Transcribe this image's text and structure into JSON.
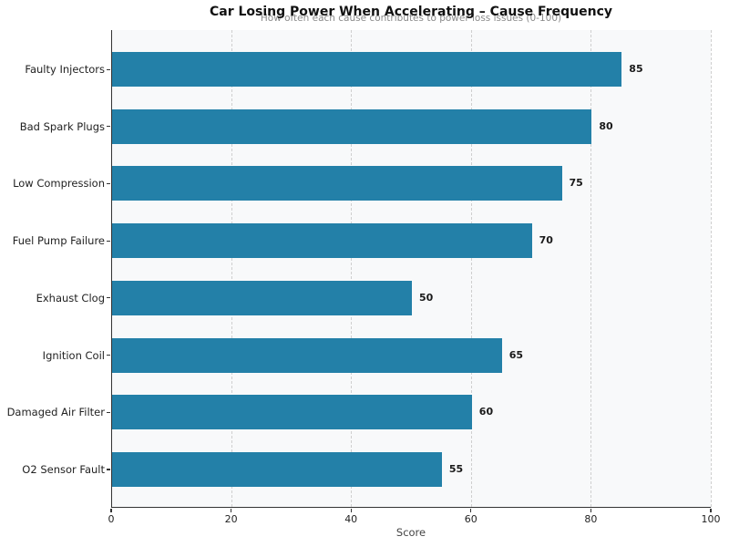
{
  "title": "Car Losing Power When Accelerating – Cause Frequency",
  "subtitle": "How often each cause contributes to power loss issues (0-100)",
  "chart_data": {
    "type": "bar",
    "orientation": "horizontal",
    "title": "Car Losing Power When Accelerating – Cause Frequency",
    "subtitle": "How often each cause contributes to power loss issues (0-100)",
    "categories": [
      "Faulty Injectors",
      "Bad Spark Plugs",
      "Low Compression",
      "Fuel Pump Failure",
      "Exhaust Clog",
      "Ignition Coil",
      "Damaged Air Filter",
      "O2 Sensor Fault"
    ],
    "values": [
      85,
      80,
      75,
      70,
      50,
      65,
      60,
      55
    ],
    "value_labels_shown": true,
    "xlabel": "Score",
    "ylabel": "",
    "xlim": [
      0,
      100
    ],
    "xticks": [
      0,
      20,
      40,
      60,
      80,
      100
    ],
    "grid": "vertical-dashed",
    "legend": "none"
  },
  "colors": {
    "bar": "#2380a8",
    "plot_background": "#f8f9fa",
    "figure_background": "#ffffff",
    "gridline": "#cfcfcf",
    "axis_spine": "#333333",
    "title_text": "#111111",
    "subtitle_text": "#8a8a8a",
    "tick_text": "#222222",
    "value_text": "#1a1a1a",
    "xlabel_text": "#444444"
  }
}
